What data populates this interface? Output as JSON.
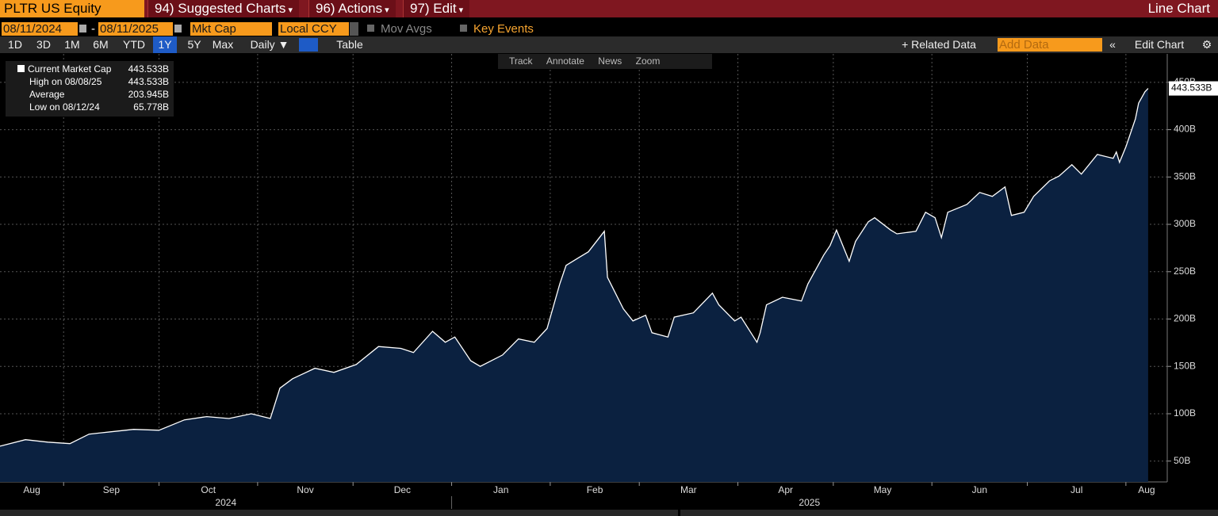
{
  "header": {
    "security": "PLTR US Equity",
    "menus": [
      "94) Suggested Charts",
      "96) Actions",
      "97) Edit"
    ],
    "view": "Line Chart"
  },
  "settings": {
    "start_date": "08/11/2024",
    "separator": "-",
    "end_date": "08/11/2025",
    "field": "Mkt Cap",
    "currency": "Local CCY",
    "mov_avgs": "Mov Avgs",
    "key_events": "Key Events"
  },
  "toolbar": {
    "periods": [
      "1D",
      "3D",
      "1M",
      "6M",
      "YTD",
      "1Y",
      "5Y",
      "Max"
    ],
    "active_period": "1Y",
    "frequency": "Daily ▼",
    "table": "Table",
    "related": "+ Related Data",
    "add_data": "Add Data",
    "edit_chart": "Edit Chart"
  },
  "chart_tools": [
    "Track",
    "Annotate",
    "News",
    "Zoom"
  ],
  "stats": [
    {
      "label": "High on 08/08/25",
      "value": "443.533B"
    },
    {
      "label": "Average",
      "value": "203.945B"
    },
    {
      "label": "Low on 08/12/24",
      "value": "65.778B"
    }
  ],
  "chart_data": {
    "type": "area",
    "current_value": "443.533B",
    "x": [
      "2024-08-12",
      "2024-08-20",
      "2024-08-27",
      "2024-09-03",
      "2024-09-09",
      "2024-09-16",
      "2024-09-23",
      "2024-10-01",
      "2024-10-09",
      "2024-10-16",
      "2024-10-23",
      "2024-10-30",
      "2024-11-05",
      "2024-11-08",
      "2024-11-12",
      "2024-11-19",
      "2024-11-25",
      "2024-12-02",
      "2024-12-09",
      "2024-12-16",
      "2024-12-20",
      "2024-12-26",
      "2024-12-30",
      "2025-01-02",
      "2025-01-07",
      "2025-01-10",
      "2025-01-17",
      "2025-01-22",
      "2025-01-27",
      "2025-01-31",
      "2025-02-04",
      "2025-02-06",
      "2025-02-10",
      "2025-02-13",
      "2025-02-18",
      "2025-02-19",
      "2025-02-24",
      "2025-02-27",
      "2025-03-03",
      "2025-03-05",
      "2025-03-10",
      "2025-03-12",
      "2025-03-18",
      "2025-03-24",
      "2025-03-26",
      "2025-03-31",
      "2025-04-02",
      "2025-04-07",
      "2025-04-08",
      "2025-04-10",
      "2025-04-15",
      "2025-04-21",
      "2025-04-23",
      "2025-04-28",
      "2025-04-30",
      "2025-05-02",
      "2025-05-06",
      "2025-05-08",
      "2025-05-12",
      "2025-05-14",
      "2025-05-19",
      "2025-05-21",
      "2025-05-27",
      "2025-05-30",
      "2025-06-02",
      "2025-06-04",
      "2025-06-06",
      "2025-06-12",
      "2025-06-16",
      "2025-06-20",
      "2025-06-24",
      "2025-06-26",
      "2025-06-30",
      "2025-07-03",
      "2025-07-08",
      "2025-07-11",
      "2025-07-15",
      "2025-07-18",
      "2025-07-23",
      "2025-07-28",
      "2025-07-29",
      "2025-07-30",
      "2025-08-01",
      "2025-08-04",
      "2025-08-05",
      "2025-08-07",
      "2025-08-08"
    ],
    "series": [
      {
        "name": "Current Market Cap",
        "color": "#ffffff",
        "fill": "#0b2140",
        "values": [
          65.778,
          72.6,
          70,
          68.4,
          78.5,
          81,
          83.5,
          82.6,
          93.5,
          97,
          95,
          100,
          95,
          127,
          137,
          148,
          143.7,
          152,
          171,
          169,
          164.6,
          187,
          175.5,
          181,
          156,
          150,
          162,
          179,
          175.5,
          190,
          237,
          256.7,
          265,
          271,
          292.7,
          244,
          210.7,
          198,
          204,
          185.5,
          181,
          202,
          206.5,
          227.4,
          215,
          198,
          202,
          175.5,
          185.5,
          215,
          223,
          219,
          237,
          267.6,
          277.6,
          294,
          261,
          282,
          302.7,
          307,
          294,
          290,
          292.7,
          312.8,
          307,
          286,
          312.8,
          321,
          333.7,
          329.5,
          339.5,
          309.4,
          312.8,
          329.5,
          346,
          351,
          363,
          353,
          373.8,
          369.7,
          376.4,
          365.5,
          382,
          411.5,
          428,
          440,
          443.533
        ]
      }
    ],
    "xlim": [
      "2024-08-12",
      "2025-08-14"
    ],
    "xticks": [
      {
        "value": "2024-08-01",
        "label": "Aug"
      },
      {
        "value": "2024-09-01",
        "label": "Sep"
      },
      {
        "value": "2024-10-01",
        "label": "Oct"
      },
      {
        "value": "2024-11-01",
        "label": "Nov"
      },
      {
        "value": "2024-12-01",
        "label": "Dec"
      },
      {
        "value": "2025-01-01",
        "label": "Jan"
      },
      {
        "value": "2025-02-01",
        "label": "Feb"
      },
      {
        "value": "2025-03-01",
        "label": "Mar"
      },
      {
        "value": "2025-04-01",
        "label": "Apr"
      },
      {
        "value": "2025-05-01",
        "label": "May"
      },
      {
        "value": "2025-06-01",
        "label": "Jun"
      },
      {
        "value": "2025-07-01",
        "label": "Jul"
      },
      {
        "value": "2025-08-01",
        "label": "Aug"
      }
    ],
    "year_labels": [
      "2024",
      "2025"
    ],
    "ylim": [
      28,
      480
    ],
    "yticks": [
      {
        "value": 50,
        "label": "50B"
      },
      {
        "value": 100,
        "label": "100B"
      },
      {
        "value": 150,
        "label": "150B"
      },
      {
        "value": 200,
        "label": "200B"
      },
      {
        "value": 250,
        "label": "250B"
      },
      {
        "value": 300,
        "label": "300B"
      },
      {
        "value": 350,
        "label": "350B"
      },
      {
        "value": 400,
        "label": "400B"
      },
      {
        "value": 450,
        "label": "450B"
      }
    ],
    "grid": true
  }
}
